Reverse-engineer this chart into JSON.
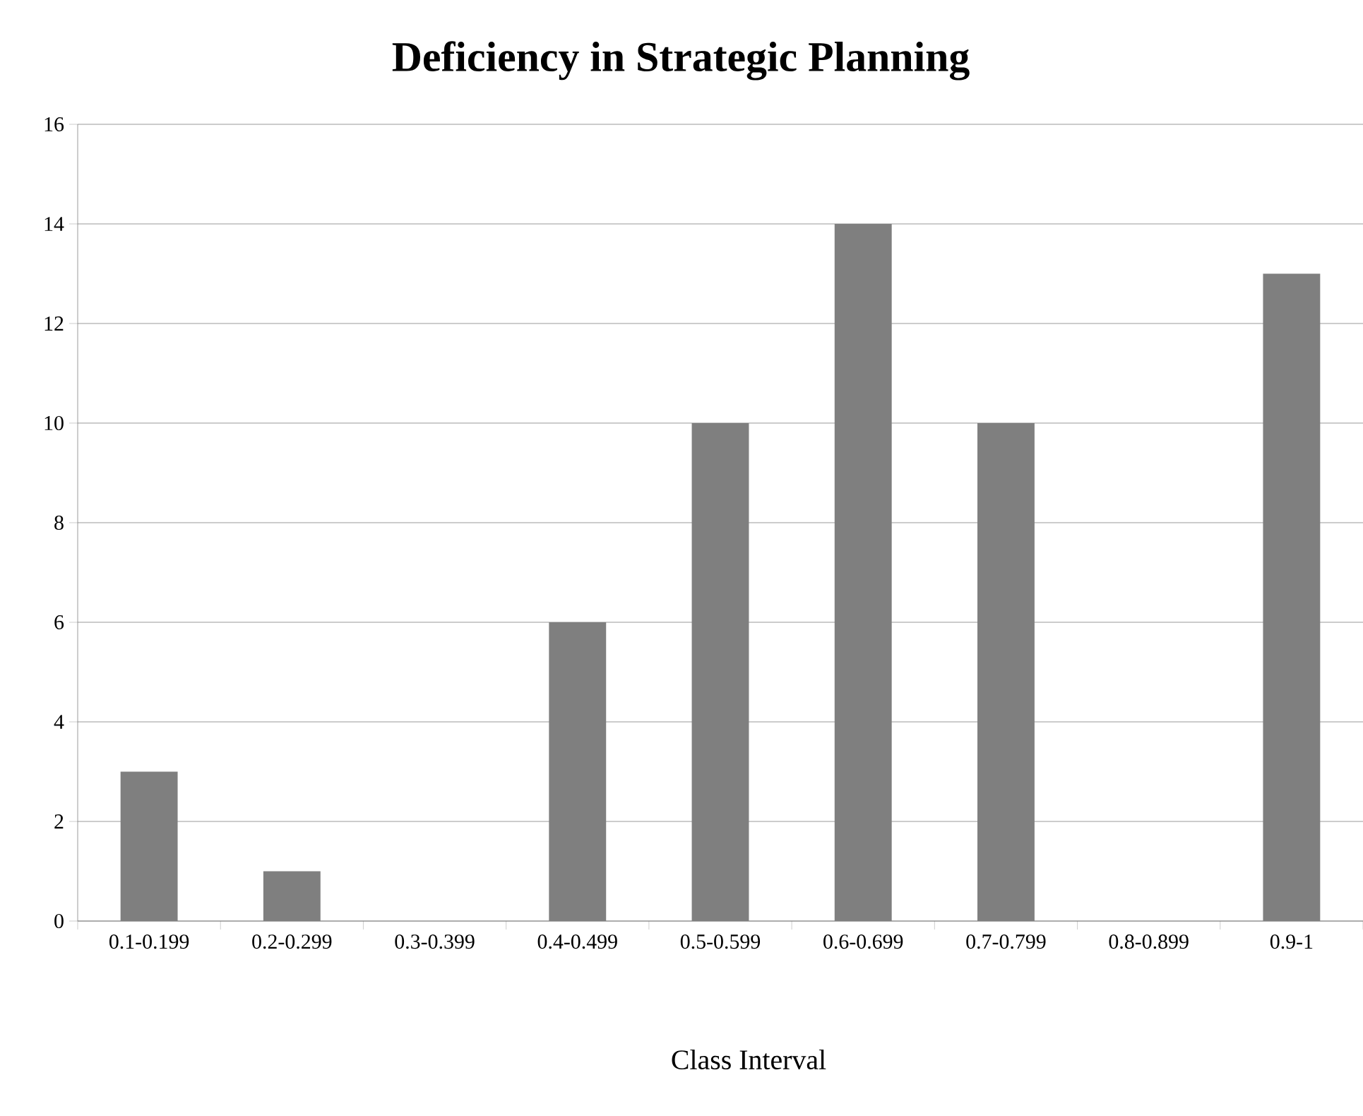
{
  "chart_data": {
    "type": "bar",
    "title": "Deficiency in Strategic Planning",
    "xlabel": "Class Interval",
    "categories": [
      "0.1-0.199",
      "0.2-0.299",
      "0.3-0.399",
      "0.4-0.499",
      "0.5-0.599",
      "0.6-0.699",
      "0.7-0.799",
      "0.8-0.899",
      "0.9-1"
    ],
    "values": [
      3,
      1,
      0,
      6,
      10,
      14,
      10,
      0,
      13
    ],
    "color": "#7f7f7f",
    "ylim": [
      0,
      16
    ],
    "yticks": [
      0,
      2,
      4,
      6,
      8,
      10,
      12,
      14,
      16
    ],
    "grid": "y"
  }
}
